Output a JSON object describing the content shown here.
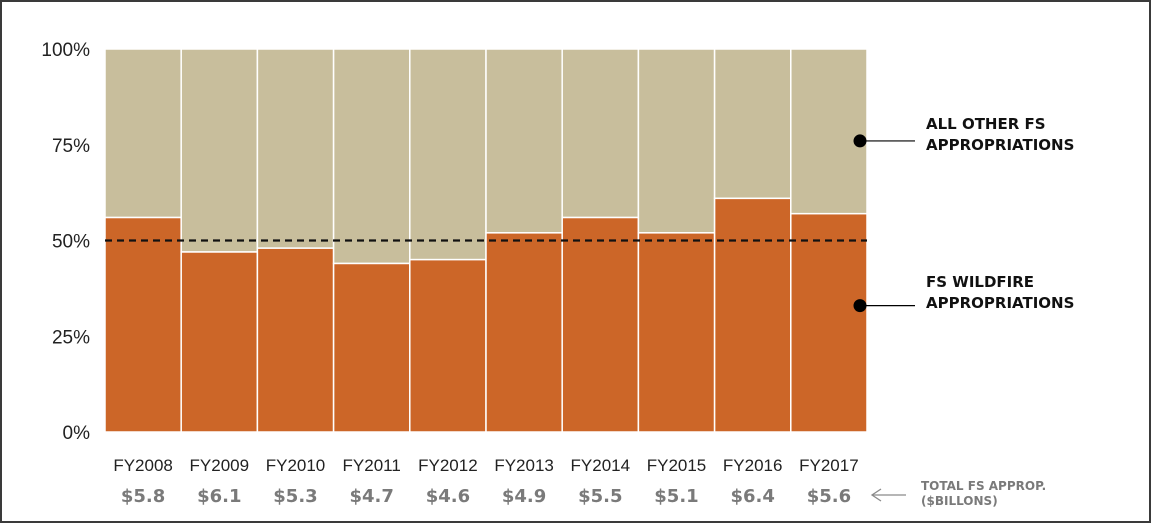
{
  "chart_data": {
    "type": "bar",
    "stacked": true,
    "normalized": true,
    "categories": [
      "FY2008",
      "FY2009",
      "FY2010",
      "FY2011",
      "FY2012",
      "FY2013",
      "FY2014",
      "FY2015",
      "FY2016",
      "FY2017"
    ],
    "totals": [
      "$5.8",
      "$6.1",
      "$5.3",
      "$4.7",
      "$4.6",
      "$4.9",
      "$5.5",
      "$5.1",
      "$6.4",
      "$5.6"
    ],
    "totals_label": [
      "TOTAL FS APPROP.",
      "($BILLONS)"
    ],
    "series": [
      {
        "name": "FS WILDFIRE APPROPRIATIONS",
        "label_lines": [
          "FS WILDFIRE",
          "APPROPRIATIONS"
        ],
        "color": "#CC6628",
        "values": [
          56,
          47,
          48,
          44,
          45,
          52,
          56,
          52,
          61,
          57
        ]
      },
      {
        "name": "ALL OTHER FS APPROPRIATIONS",
        "label_lines": [
          "ALL OTHER FS",
          "APPROPRIATIONS"
        ],
        "color": "#C8BE9C",
        "values": [
          44,
          53,
          52,
          56,
          55,
          48,
          44,
          48,
          39,
          43
        ]
      }
    ],
    "yticks": [
      "0%",
      "25%",
      "50%",
      "75%",
      "100%"
    ],
    "ylim": [
      0,
      100
    ],
    "reference_line": {
      "y": 50,
      "style": "dashed"
    },
    "title": "",
    "xlabel": "",
    "ylabel": ""
  }
}
